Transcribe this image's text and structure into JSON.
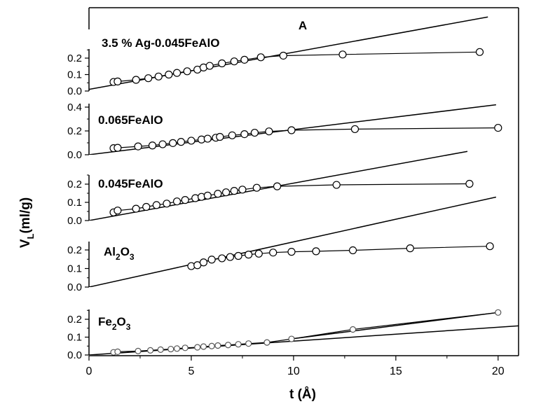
{
  "chart_data": {
    "type": "scatter",
    "title": "A",
    "xlabel": "t (Å)",
    "ylabel_main": "V",
    "ylabel_sub": "L",
    "ylabel_rest": "(ml/g)",
    "xlim": [
      0,
      21
    ],
    "xticks": [
      "0",
      "5",
      "10",
      "15",
      "20"
    ],
    "grid": false,
    "panels": [
      {
        "label": "3.5 % Ag-0.045FeAlO",
        "label_main": "3.5 % Ag-0.045FeAlO",
        "label_sub": "",
        "label_rest": "",
        "ylim": [
          0,
          0.25
        ],
        "yticks": [
          "0.0",
          "0.1",
          "0.2"
        ],
        "points": [
          [
            1.2,
            0.055
          ],
          [
            1.4,
            0.058
          ],
          [
            2.3,
            0.068
          ],
          [
            2.9,
            0.078
          ],
          [
            3.4,
            0.088
          ],
          [
            3.9,
            0.1
          ],
          [
            4.3,
            0.11
          ],
          [
            4.8,
            0.12
          ],
          [
            5.3,
            0.13
          ],
          [
            5.6,
            0.143
          ],
          [
            5.9,
            0.153
          ],
          [
            6.5,
            0.168
          ],
          [
            7.1,
            0.18
          ],
          [
            7.6,
            0.19
          ],
          [
            8.4,
            0.205
          ],
          [
            9.5,
            0.215
          ],
          [
            12.4,
            0.222
          ],
          [
            19.1,
            0.237
          ]
        ],
        "fit_line": [
          [
            0,
            0.01
          ],
          [
            19.5,
            0.45
          ]
        ]
      },
      {
        "label": "0.065FeAlO",
        "label_main": "0.065FeAlO",
        "label_sub": "",
        "label_rest": "",
        "ylim": [
          0,
          0.4
        ],
        "yticks": [
          "0.0",
          "0.2",
          "0.4"
        ],
        "points": [
          [
            1.2,
            0.055
          ],
          [
            1.4,
            0.058
          ],
          [
            2.4,
            0.07
          ],
          [
            3.1,
            0.078
          ],
          [
            3.6,
            0.088
          ],
          [
            4.1,
            0.098
          ],
          [
            4.5,
            0.108
          ],
          [
            5.0,
            0.118
          ],
          [
            5.5,
            0.128
          ],
          [
            5.8,
            0.135
          ],
          [
            6.2,
            0.143
          ],
          [
            6.4,
            0.15
          ],
          [
            7.0,
            0.163
          ],
          [
            7.6,
            0.173
          ],
          [
            8.1,
            0.185
          ],
          [
            8.8,
            0.196
          ],
          [
            9.9,
            0.206
          ],
          [
            13.0,
            0.215
          ],
          [
            20.0,
            0.226
          ]
        ],
        "fit_line": [
          [
            0,
            0.0
          ],
          [
            19.9,
            0.42
          ]
        ]
      },
      {
        "label": "0.045FeAlO",
        "label_main": "0.045FeAlO",
        "label_sub": "",
        "label_rest": "",
        "ylim": [
          0,
          0.25
        ],
        "yticks": [
          "0.0",
          "0.1",
          "0.2"
        ],
        "points": [
          [
            1.2,
            0.045
          ],
          [
            1.4,
            0.055
          ],
          [
            2.3,
            0.065
          ],
          [
            2.8,
            0.075
          ],
          [
            3.3,
            0.085
          ],
          [
            3.8,
            0.093
          ],
          [
            4.3,
            0.105
          ],
          [
            4.7,
            0.113
          ],
          [
            5.2,
            0.123
          ],
          [
            5.5,
            0.13
          ],
          [
            5.8,
            0.137
          ],
          [
            6.3,
            0.147
          ],
          [
            6.7,
            0.155
          ],
          [
            7.1,
            0.163
          ],
          [
            7.5,
            0.17
          ],
          [
            8.2,
            0.18
          ],
          [
            9.2,
            0.188
          ],
          [
            12.1,
            0.196
          ],
          [
            18.6,
            0.202
          ]
        ],
        "fit_line": [
          [
            0,
            0.0
          ],
          [
            18.5,
            0.38
          ]
        ]
      },
      {
        "label": "Al2O3",
        "label_main": "Al",
        "label_sub": "2",
        "label_rest": "O",
        "label_sub2": "3",
        "ylim": [
          0,
          0.25
        ],
        "yticks": [
          "0.0",
          "0.1",
          "0.2"
        ],
        "points": [
          [
            5.0,
            0.113
          ],
          [
            5.3,
            0.118
          ],
          [
            5.6,
            0.133
          ],
          [
            6.0,
            0.148
          ],
          [
            6.5,
            0.155
          ],
          [
            6.9,
            0.162
          ],
          [
            7.3,
            0.168
          ],
          [
            7.8,
            0.175
          ],
          [
            8.3,
            0.18
          ],
          [
            9.0,
            0.186
          ],
          [
            9.9,
            0.19
          ],
          [
            11.1,
            0.193
          ],
          [
            12.9,
            0.198
          ],
          [
            15.7,
            0.209
          ],
          [
            19.6,
            0.22
          ]
        ],
        "fit_line": [
          [
            0,
            0.0
          ],
          [
            19.9,
            0.485
          ]
        ]
      },
      {
        "label": "Fe2O3",
        "label_main": "Fe",
        "label_sub": "2",
        "label_rest": "O",
        "label_sub2": "3",
        "ylim": [
          0,
          0.25
        ],
        "yticks": [
          "0.0",
          "0.1",
          "0.2"
        ],
        "points": [
          [
            1.2,
            0.015
          ],
          [
            1.4,
            0.018
          ],
          [
            2.4,
            0.022
          ],
          [
            3.0,
            0.026
          ],
          [
            3.5,
            0.03
          ],
          [
            4.0,
            0.033
          ],
          [
            4.3,
            0.036
          ],
          [
            4.7,
            0.04
          ],
          [
            5.3,
            0.043
          ],
          [
            5.6,
            0.047
          ],
          [
            6.0,
            0.05
          ],
          [
            6.3,
            0.053
          ],
          [
            6.8,
            0.056
          ],
          [
            7.3,
            0.06
          ],
          [
            7.8,
            0.064
          ],
          [
            8.7,
            0.07
          ],
          [
            9.9,
            0.09
          ],
          [
            12.9,
            0.143
          ],
          [
            20.0,
            0.238
          ]
        ],
        "fit_line": [
          [
            0,
            0.0
          ],
          [
            21,
            0.163
          ]
        ],
        "fit_line_2": [
          [
            9.9,
            0.09
          ],
          [
            20.0,
            0.238
          ]
        ]
      }
    ]
  }
}
